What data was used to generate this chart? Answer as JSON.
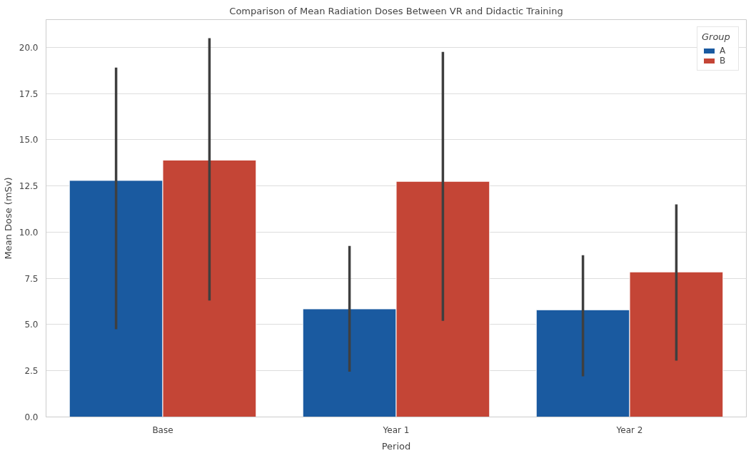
{
  "chart_data": {
    "type": "bar",
    "title": "Comparison of Mean Radiation Doses Between VR and Didactic Training",
    "xlabel": "Period",
    "ylabel": "Mean Dose (mSv)",
    "legend_title": "Group",
    "categories": [
      "Base",
      "Year 1",
      "Year 2"
    ],
    "series": [
      {
        "name": "A",
        "color": "#1a5aa0",
        "values": [
          12.8,
          5.85,
          5.8
        ],
        "errors": [
          [
            4.75,
            18.9
          ],
          [
            2.45,
            9.25
          ],
          [
            2.2,
            8.75
          ]
        ]
      },
      {
        "name": "B",
        "color": "#c44536",
        "values": [
          13.9,
          12.75,
          7.85
        ],
        "errors": [
          [
            6.3,
            20.5
          ],
          [
            5.2,
            19.75
          ],
          [
            3.05,
            11.5
          ]
        ]
      }
    ],
    "ylim": [
      0,
      21.5
    ],
    "yticks": [
      {
        "value": 0,
        "label": "0.0"
      },
      {
        "value": 2.5,
        "label": "2.5"
      },
      {
        "value": 5,
        "label": "5.0"
      },
      {
        "value": 7.5,
        "label": "7.5"
      },
      {
        "value": 10,
        "label": "10.0"
      },
      {
        "value": 12.5,
        "label": "12.5"
      },
      {
        "value": 15,
        "label": "15.0"
      },
      {
        "value": 17.5,
        "label": "17.5"
      },
      {
        "value": 20,
        "label": "20.0"
      }
    ],
    "grid": "y",
    "legend": "top right"
  }
}
